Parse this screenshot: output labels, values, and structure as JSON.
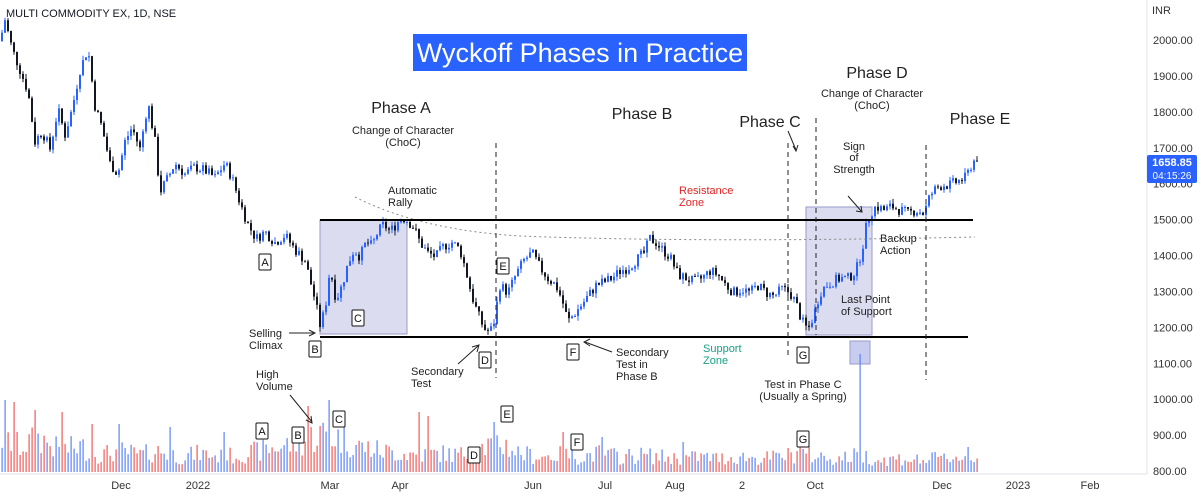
{
  "header": {
    "symbol": "MULTI COMMODITY EX, 1D, NSE",
    "currency": "INR",
    "title": "Wyckoff Phases in Practice"
  },
  "price_tag": {
    "value": "1658.85",
    "countdown": "04:15:26"
  },
  "colors": {
    "up": "#2962ff",
    "down": "#131722",
    "vol_up": "#5b82f5",
    "vol_down": "#ef5a5a",
    "title_bg": "#2962ff",
    "resistance": "#e02424",
    "support": "#16a085",
    "zone_fill": "#dcdcf0",
    "zone_stroke": "#9a9ac8"
  },
  "chart_data": {
    "type": "candlestick",
    "title": "Wyckoff Phases in Practice",
    "y_axis": {
      "min": 780,
      "max": 2080,
      "ticks": [
        "800.00",
        "900.00",
        "1000.00",
        "1100.00",
        "1200.00",
        "1300.00",
        "1400.00",
        "1500.00",
        "1600.00",
        "1700.00",
        "1800.00",
        "1900.00",
        "2000.00"
      ]
    },
    "x_axis": {
      "ticks": [
        "Dec",
        "2022",
        "Mar",
        "Apr",
        "Jun",
        "Jul",
        "Aug",
        "2",
        "Oct",
        "Dec",
        "2023",
        "Feb"
      ]
    },
    "resistance_level": 1495,
    "support_level": 1170,
    "last_price": 1658.85,
    "price_path": [
      [
        0,
        1980
      ],
      [
        5,
        2040
      ],
      [
        12,
        1960
      ],
      [
        20,
        1900
      ],
      [
        28,
        1840
      ],
      [
        35,
        1700
      ],
      [
        42,
        1730
      ],
      [
        50,
        1680
      ],
      [
        58,
        1790
      ],
      [
        65,
        1720
      ],
      [
        72,
        1790
      ],
      [
        80,
        1900
      ],
      [
        88,
        1960
      ],
      [
        95,
        1800
      ],
      [
        102,
        1740
      ],
      [
        110,
        1640
      ],
      [
        118,
        1610
      ],
      [
        125,
        1700
      ],
      [
        132,
        1740
      ],
      [
        140,
        1680
      ],
      [
        148,
        1810
      ],
      [
        155,
        1700
      ],
      [
        160,
        1560
      ],
      [
        168,
        1600
      ],
      [
        175,
        1640
      ],
      [
        185,
        1610
      ],
      [
        195,
        1630
      ],
      [
        205,
        1620
      ],
      [
        215,
        1600
      ],
      [
        225,
        1640
      ],
      [
        232,
        1600
      ],
      [
        240,
        1530
      ],
      [
        248,
        1470
      ],
      [
        256,
        1430
      ],
      [
        265,
        1450
      ],
      [
        275,
        1420
      ],
      [
        285,
        1440
      ],
      [
        295,
        1400
      ],
      [
        305,
        1370
      ],
      [
        315,
        1260
      ],
      [
        320,
        1190
      ],
      [
        325,
        1230
      ],
      [
        330,
        1350
      ],
      [
        336,
        1260
      ],
      [
        342,
        1300
      ],
      [
        348,
        1360
      ],
      [
        354,
        1400
      ],
      [
        360,
        1380
      ],
      [
        366,
        1420
      ],
      [
        372,
        1410
      ],
      [
        378,
        1450
      ],
      [
        384,
        1470
      ],
      [
        390,
        1450
      ],
      [
        396,
        1470
      ],
      [
        402,
        1490
      ],
      [
        408,
        1480
      ],
      [
        414,
        1460
      ],
      [
        420,
        1420
      ],
      [
        428,
        1390
      ],
      [
        436,
        1380
      ],
      [
        444,
        1410
      ],
      [
        452,
        1420
      ],
      [
        460,
        1400
      ],
      [
        466,
        1340
      ],
      [
        472,
        1270
      ],
      [
        478,
        1220
      ],
      [
        484,
        1180
      ],
      [
        490,
        1170
      ],
      [
        494,
        1200
      ],
      [
        500,
        1300
      ],
      [
        508,
        1280
      ],
      [
        516,
        1330
      ],
      [
        524,
        1370
      ],
      [
        532,
        1390
      ],
      [
        540,
        1350
      ],
      [
        548,
        1320
      ],
      [
        556,
        1300
      ],
      [
        562,
        1260
      ],
      [
        568,
        1200
      ],
      [
        574,
        1220
      ],
      [
        580,
        1240
      ],
      [
        588,
        1270
      ],
      [
        596,
        1300
      ],
      [
        604,
        1310
      ],
      [
        612,
        1320
      ],
      [
        620,
        1340
      ],
      [
        628,
        1350
      ],
      [
        636,
        1370
      ],
      [
        644,
        1390
      ],
      [
        650,
        1430
      ],
      [
        656,
        1420
      ],
      [
        662,
        1400
      ],
      [
        670,
        1380
      ],
      [
        678,
        1330
      ],
      [
        686,
        1320
      ],
      [
        694,
        1310
      ],
      [
        702,
        1320
      ],
      [
        710,
        1340
      ],
      [
        718,
        1330
      ],
      [
        726,
        1300
      ],
      [
        734,
        1280
      ],
      [
        742,
        1290
      ],
      [
        750,
        1280
      ],
      [
        758,
        1300
      ],
      [
        766,
        1280
      ],
      [
        774,
        1270
      ],
      [
        782,
        1290
      ],
      [
        790,
        1280
      ],
      [
        796,
        1250
      ],
      [
        802,
        1200
      ],
      [
        808,
        1175
      ],
      [
        814,
        1220
      ],
      [
        820,
        1280
      ],
      [
        826,
        1300
      ],
      [
        832,
        1310
      ],
      [
        840,
        1320
      ],
      [
        848,
        1320
      ],
      [
        856,
        1340
      ],
      [
        862,
        1400
      ],
      [
        866,
        1460
      ],
      [
        870,
        1500
      ],
      [
        876,
        1520
      ],
      [
        884,
        1510
      ],
      [
        892,
        1520
      ],
      [
        900,
        1510
      ],
      [
        908,
        1500
      ],
      [
        916,
        1510
      ],
      [
        924,
        1500
      ],
      [
        930,
        1550
      ],
      [
        936,
        1570
      ],
      [
        942,
        1580
      ],
      [
        950,
        1580
      ],
      [
        958,
        1590
      ],
      [
        966,
        1600
      ],
      [
        972,
        1640
      ],
      [
        978,
        1660
      ]
    ],
    "volume_path": [
      [
        0,
        40
      ],
      [
        20,
        30
      ],
      [
        40,
        40
      ],
      [
        60,
        25
      ],
      [
        80,
        30
      ],
      [
        100,
        20
      ],
      [
        120,
        25
      ],
      [
        140,
        20
      ],
      [
        160,
        25
      ],
      [
        180,
        18
      ],
      [
        200,
        22
      ],
      [
        220,
        18
      ],
      [
        240,
        20
      ],
      [
        260,
        25
      ],
      [
        280,
        30
      ],
      [
        300,
        35
      ],
      [
        320,
        45
      ],
      [
        340,
        40
      ],
      [
        360,
        30
      ],
      [
        380,
        25
      ],
      [
        400,
        22
      ],
      [
        420,
        20
      ],
      [
        440,
        22
      ],
      [
        460,
        20
      ],
      [
        480,
        28
      ],
      [
        500,
        35
      ],
      [
        520,
        22
      ],
      [
        540,
        18
      ],
      [
        560,
        20
      ],
      [
        580,
        18
      ],
      [
        600,
        22
      ],
      [
        620,
        18
      ],
      [
        640,
        20
      ],
      [
        660,
        18
      ],
      [
        680,
        16
      ],
      [
        700,
        18
      ],
      [
        720,
        16
      ],
      [
        740,
        18
      ],
      [
        760,
        16
      ],
      [
        780,
        18
      ],
      [
        800,
        22
      ],
      [
        820,
        18
      ],
      [
        840,
        16
      ],
      [
        860,
        20
      ],
      [
        880,
        14
      ],
      [
        900,
        16
      ],
      [
        920,
        14
      ],
      [
        940,
        16
      ],
      [
        960,
        18
      ],
      [
        980,
        14
      ]
    ],
    "volume_ticks": [
      0,
      7,
      16,
      35,
      64,
      92,
      120,
      170,
      225,
      310,
      330,
      420,
      430,
      495,
      565,
      602,
      685,
      800,
      862,
      970
    ]
  },
  "annotations": {
    "phase_a": "Phase A",
    "phase_a_choc1": "Change of Character",
    "phase_a_choc2": "(ChoC)",
    "phase_b": "Phase B",
    "phase_c": "Phase C",
    "phase_d": "Phase D",
    "phase_d_choc1": "Change of Character",
    "phase_d_choc2": "(ChoC)",
    "phase_e": "Phase E",
    "auto_rally1": "Automatic",
    "auto_rally2": "Rally",
    "resistance1": "Resistance",
    "resistance2": "Zone",
    "support1": "Support",
    "support2": "Zone",
    "sos1": "Sign",
    "sos2": "of",
    "sos3": "Strength",
    "backup1": "Backup",
    "backup2": "Action",
    "lps1": "Last Point",
    "lps2": "of Support",
    "sc1": "Selling",
    "sc2": "Climax",
    "st1": "Secondary",
    "st2": "Test",
    "stb1": "Secondary",
    "stb2": "Test in",
    "stb3": "Phase B",
    "test_c1": "Test in Phase C",
    "test_c2": "(Usually a Spring)",
    "hv1": "High",
    "hv2": "Volume",
    "letters": {
      "A": "A",
      "B": "B",
      "C": "C",
      "D": "D",
      "E": "E",
      "F": "F",
      "G": "G"
    }
  }
}
